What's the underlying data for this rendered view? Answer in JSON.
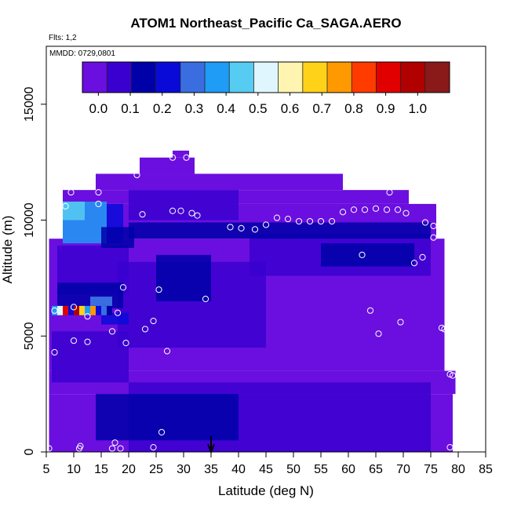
{
  "chart_data": {
    "type": "heatmap",
    "title": "ATOM1 Northeast_Pacific Ca_SAGA.AERO",
    "flights_label": "Flts: 1,2",
    "dates_label": "MMDD: 0729,0801",
    "xlabel": "Latitude (deg N)",
    "ylabel": "Altitude (m)",
    "xlim": [
      5,
      85
    ],
    "ylim": [
      0,
      17500
    ],
    "x_ticks": [
      "5",
      "10",
      "15",
      "20",
      "25",
      "30",
      "35",
      "40",
      "45",
      "50",
      "55",
      "60",
      "65",
      "70",
      "75",
      "80",
      "85"
    ],
    "y_ticks": [
      "0",
      "5000",
      "10000",
      "15000"
    ],
    "colorbar": {
      "range": [
        -0.05,
        1.1
      ],
      "tick_labels": [
        "0.0",
        "0.1",
        "0.2",
        "0.3",
        "0.4",
        "0.5",
        "0.6",
        "0.7",
        "0.8",
        "0.9",
        "1.0"
      ],
      "colors": [
        "#6a0fdf",
        "#3a00d0",
        "#0000a8",
        "#0a0ad8",
        "#3a6ee0",
        "#1f9cf5",
        "#56ccf2",
        "#dff6ff",
        "#fff5b0",
        "#ffd21a",
        "#ff9900",
        "#ff3b00",
        "#e00000",
        "#b00000",
        "#8a1a1a"
      ]
    },
    "marker_latitude": 35,
    "grid": false,
    "legend": "colorbar-top",
    "domain_outline": {
      "bounds": [
        {
          "y0": 0,
          "y1": 2500,
          "x0": 5.5,
          "x1": 79
        },
        {
          "y0": 2500,
          "y1": 3500,
          "x0": 5.5,
          "x1": 79.5
        },
        {
          "y0": 3500,
          "y1": 9200,
          "x0": 5.5,
          "x1": 77.5
        },
        {
          "y0": 9200,
          "y1": 10700,
          "x0": 8,
          "x1": 76
        },
        {
          "y0": 10700,
          "y1": 11300,
          "x0": 8,
          "x1": 71
        },
        {
          "y0": 11300,
          "y1": 12000,
          "x0": 14,
          "x1": 59
        },
        {
          "y0": 12000,
          "y1": 12700,
          "x0": 22,
          "x1": 32
        },
        {
          "y0": 12700,
          "y1": 13000,
          "x0": 28,
          "x1": 31
        }
      ],
      "background_value": 0.01
    },
    "features": [
      {
        "value": 0.08,
        "lat": [
          20,
          75
        ],
        "alt": [
          0,
          3000
        ]
      },
      {
        "value": 0.12,
        "lat": [
          14,
          40
        ],
        "alt": [
          500,
          2500
        ]
      },
      {
        "value": 0.07,
        "lat": [
          18,
          45
        ],
        "alt": [
          4500,
          8200
        ]
      },
      {
        "value": 0.12,
        "lat": [
          25,
          35
        ],
        "alt": [
          6500,
          8500
        ]
      },
      {
        "value": 0.1,
        "lat": [
          42,
          75
        ],
        "alt": [
          7600,
          9400
        ]
      },
      {
        "value": 0.14,
        "lat": [
          55,
          72
        ],
        "alt": [
          8000,
          9000
        ]
      },
      {
        "value": 0.08,
        "lat": [
          7,
          20
        ],
        "alt": [
          6800,
          8900
        ]
      },
      {
        "value": 0.15,
        "lat": [
          7,
          19
        ],
        "alt": [
          6200,
          7300
        ]
      },
      {
        "value": 0.2,
        "lat": [
          15,
          20
        ],
        "alt": [
          5500,
          6000
        ]
      },
      {
        "value": 0.1,
        "lat": [
          6,
          20
        ],
        "alt": [
          3000,
          5200
        ]
      },
      {
        "value": 0.38,
        "lat": [
          8,
          16
        ],
        "alt": [
          9000,
          10800
        ]
      },
      {
        "value": 0.47,
        "lat": [
          8,
          12
        ],
        "alt": [
          10000,
          10800
        ]
      },
      {
        "value": 0.2,
        "lat": [
          16,
          19
        ],
        "alt": [
          9000,
          10700
        ]
      },
      {
        "value": 0.12,
        "lat": [
          15,
          21
        ],
        "alt": [
          8800,
          9700
        ]
      },
      {
        "value": 0.12,
        "lat": [
          20,
          75
        ],
        "alt": [
          9200,
          9900
        ]
      },
      {
        "value": 0.03,
        "lat": [
          20,
          40
        ],
        "alt": [
          10000,
          11300
        ]
      }
    ],
    "band_cells": [
      {
        "lat": [
          6,
          7
        ],
        "value": 0.38
      },
      {
        "lat": [
          7,
          8
        ],
        "value": 0.52
      },
      {
        "lat": [
          8,
          9
        ],
        "value": 0.88
      },
      {
        "lat": [
          9,
          10
        ],
        "value": 0.22
      },
      {
        "lat": [
          10,
          11
        ],
        "value": 0.95
      },
      {
        "lat": [
          11,
          12
        ],
        "value": 0.65
      },
      {
        "lat": [
          12,
          13
        ],
        "value": 0.35
      },
      {
        "lat": [
          13,
          14
        ],
        "value": 0.72
      },
      {
        "lat": [
          14,
          15
        ],
        "value": 0.2
      },
      {
        "lat": [
          15,
          16
        ],
        "value": 0.3
      },
      {
        "lat": [
          16,
          17
        ],
        "value": 0.12
      }
    ],
    "band_alt": [
      5900,
      6300
    ],
    "band_upper": {
      "lat": [
        13,
        17
      ],
      "alt": [
        6300,
        6700
      ],
      "value": 0.33
    },
    "observations": [
      {
        "lat": 5.5,
        "alt": 150
      },
      {
        "lat": 11,
        "alt": 150
      },
      {
        "lat": 11.2,
        "alt": 250
      },
      {
        "lat": 17,
        "alt": 150
      },
      {
        "lat": 17.5,
        "alt": 400
      },
      {
        "lat": 18.5,
        "alt": 150
      },
      {
        "lat": 24.5,
        "alt": 200
      },
      {
        "lat": 26,
        "alt": 850
      },
      {
        "lat": 6.5,
        "alt": 4300
      },
      {
        "lat": 10,
        "alt": 4800
      },
      {
        "lat": 12.5,
        "alt": 4750
      },
      {
        "lat": 19.5,
        "alt": 4700
      },
      {
        "lat": 27,
        "alt": 4350
      },
      {
        "lat": 23,
        "alt": 5300
      },
      {
        "lat": 24.5,
        "alt": 5650
      },
      {
        "lat": 17,
        "alt": 5200
      },
      {
        "lat": 18,
        "alt": 6000
      },
      {
        "lat": 12.5,
        "alt": 5850
      },
      {
        "lat": 6.5,
        "alt": 6100
      },
      {
        "lat": 10,
        "alt": 6250
      },
      {
        "lat": 19,
        "alt": 7100
      },
      {
        "lat": 25.5,
        "alt": 7000
      },
      {
        "lat": 34,
        "alt": 6600
      },
      {
        "lat": 9.5,
        "alt": 11200
      },
      {
        "lat": 14.5,
        "alt": 11200
      },
      {
        "lat": 8.5,
        "alt": 10600
      },
      {
        "lat": 14.5,
        "alt": 10700
      },
      {
        "lat": 21.5,
        "alt": 11950
      },
      {
        "lat": 22.5,
        "alt": 10250
      },
      {
        "lat": 28,
        "alt": 12700
      },
      {
        "lat": 30.5,
        "alt": 12700
      },
      {
        "lat": 28,
        "alt": 10400
      },
      {
        "lat": 29.5,
        "alt": 10400
      },
      {
        "lat": 31.5,
        "alt": 10300
      },
      {
        "lat": 32.5,
        "alt": 10200
      },
      {
        "lat": 38.5,
        "alt": 9700
      },
      {
        "lat": 40.5,
        "alt": 9650
      },
      {
        "lat": 43,
        "alt": 9600
      },
      {
        "lat": 45,
        "alt": 9800
      },
      {
        "lat": 47,
        "alt": 10100
      },
      {
        "lat": 49,
        "alt": 10050
      },
      {
        "lat": 51,
        "alt": 9950
      },
      {
        "lat": 53,
        "alt": 9950
      },
      {
        "lat": 55,
        "alt": 9950
      },
      {
        "lat": 57,
        "alt": 9950
      },
      {
        "lat": 59,
        "alt": 10350
      },
      {
        "lat": 61,
        "alt": 10450
      },
      {
        "lat": 63,
        "alt": 10450
      },
      {
        "lat": 65,
        "alt": 10500
      },
      {
        "lat": 67,
        "alt": 10450
      },
      {
        "lat": 69,
        "alt": 10450
      },
      {
        "lat": 70.5,
        "alt": 10300
      },
      {
        "lat": 67.5,
        "alt": 11200
      },
      {
        "lat": 74,
        "alt": 9900
      },
      {
        "lat": 75.5,
        "alt": 9750
      },
      {
        "lat": 75.5,
        "alt": 9250
      },
      {
        "lat": 62.5,
        "alt": 8500
      },
      {
        "lat": 72,
        "alt": 8150
      },
      {
        "lat": 73.5,
        "alt": 8400
      },
      {
        "lat": 64,
        "alt": 6100
      },
      {
        "lat": 69.5,
        "alt": 5600
      },
      {
        "lat": 65.5,
        "alt": 5100
      },
      {
        "lat": 77,
        "alt": 5350
      },
      {
        "lat": 77.5,
        "alt": 5300
      },
      {
        "lat": 78.5,
        "alt": 3350
      },
      {
        "lat": 79,
        "alt": 3300
      },
      {
        "lat": 78.5,
        "alt": 200
      }
    ]
  }
}
